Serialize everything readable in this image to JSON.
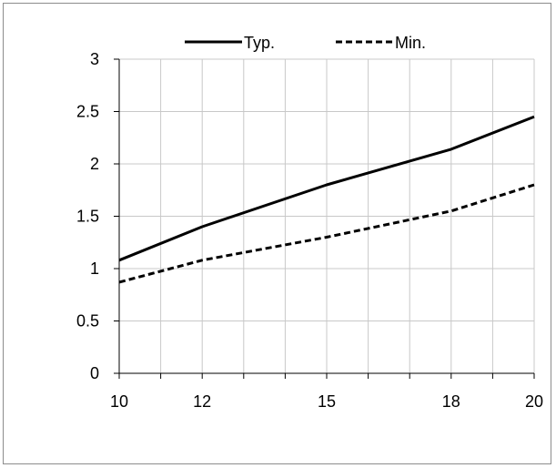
{
  "chart_data": {
    "type": "line",
    "title": "",
    "xlabel": "",
    "ylabel": "",
    "x_categories": [
      "10",
      "",
      "12",
      "",
      "",
      "15",
      "",
      "",
      "18",
      "",
      "20"
    ],
    "x_tick_labels": [
      "10",
      "12",
      "15",
      "18",
      "20"
    ],
    "y_tick_labels": [
      "0",
      "0.5",
      "1",
      "1.5",
      "2",
      "2.5",
      "3"
    ],
    "ylim": [
      0,
      3
    ],
    "grid": true,
    "legend_position": "top",
    "series": [
      {
        "name": "Typ.",
        "style": "solid",
        "color": "#000000",
        "x": [
          10,
          12,
          15,
          18,
          20
        ],
        "values": [
          1.08,
          1.4,
          1.8,
          2.14,
          2.45
        ]
      },
      {
        "name": "Min.",
        "style": "dashed",
        "color": "#000000",
        "x": [
          10,
          12,
          15,
          18,
          20
        ],
        "values": [
          0.87,
          1.08,
          1.3,
          1.55,
          1.8
        ]
      }
    ]
  }
}
